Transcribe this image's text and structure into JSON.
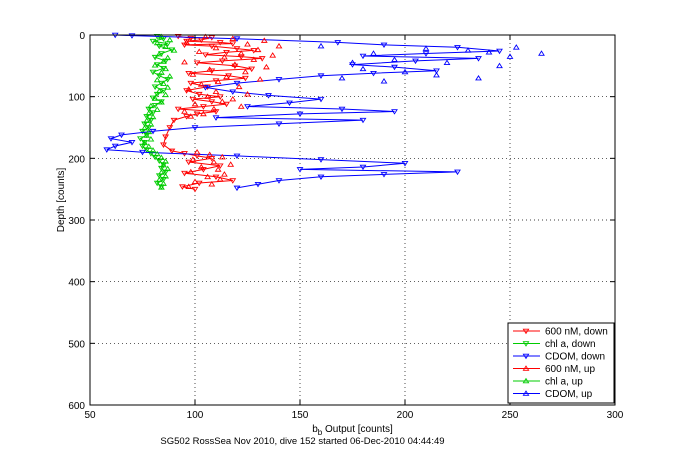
{
  "chart_data": {
    "type": "scatter",
    "title": "",
    "caption": "SG502 RossSea Nov 2010, dive 152 started 06-Dec-2010 04:44:49",
    "xlabel": "b",
    "xlabel_sub": "b",
    "xlabel_rest": " Output [counts]",
    "ylabel": "Depth [counts]",
    "xlim": [
      50,
      300
    ],
    "ylim": [
      0,
      600
    ],
    "y_reversed": true,
    "grid": true,
    "grid_style": "dotted",
    "legend_position": "bottom-right",
    "x_ticks": [
      "50",
      "100",
      "150",
      "200",
      "250",
      "300"
    ],
    "y_ticks": [
      "0",
      "100",
      "200",
      "300",
      "400",
      "500",
      "600"
    ],
    "series": [
      {
        "name": "600 nM, down",
        "color": "#ff0000",
        "marker": "triangle-down",
        "connected": true,
        "points": [
          [
            92,
            2
          ],
          [
            98,
            5
          ],
          [
            108,
            4
          ],
          [
            103,
            8
          ],
          [
            96,
            10
          ],
          [
            112,
            12
          ],
          [
            118,
            14
          ],
          [
            95,
            16
          ],
          [
            108,
            18
          ],
          [
            120,
            22
          ],
          [
            128,
            25
          ],
          [
            115,
            28
          ],
          [
            105,
            32
          ],
          [
            122,
            35
          ],
          [
            132,
            38
          ],
          [
            113,
            42
          ],
          [
            101,
            45
          ],
          [
            119,
            50
          ],
          [
            127,
            55
          ],
          [
            108,
            58
          ],
          [
            97,
            62
          ],
          [
            116,
            66
          ],
          [
            124,
            70
          ],
          [
            110,
            74
          ],
          [
            98,
            78
          ],
          [
            106,
            84
          ],
          [
            96,
            90
          ],
          [
            102,
            96
          ],
          [
            112,
            100
          ],
          [
            99,
            104
          ],
          [
            108,
            108
          ],
          [
            115,
            112
          ],
          [
            104,
            116
          ],
          [
            92,
            120
          ],
          [
            110,
            124
          ],
          [
            101,
            128
          ],
          [
            96,
            132
          ],
          [
            90,
            138
          ],
          [
            88,
            150
          ],
          [
            86,
            165
          ],
          [
            85,
            178
          ],
          [
            89,
            188
          ],
          [
            95,
            192
          ],
          [
            101,
            196
          ],
          [
            108,
            200
          ],
          [
            97,
            206
          ],
          [
            112,
            212
          ],
          [
            104,
            218
          ],
          [
            95,
            224
          ],
          [
            110,
            230
          ],
          [
            118,
            236
          ],
          [
            102,
            240
          ],
          [
            94,
            246
          ],
          [
            100,
            250
          ]
        ]
      },
      {
        "name": "chl a, down",
        "color": "#00cc00",
        "marker": "triangle-down",
        "connected": true,
        "points": [
          [
            82,
            2
          ],
          [
            85,
            6
          ],
          [
            80,
            10
          ],
          [
            87,
            14
          ],
          [
            83,
            18
          ],
          [
            89,
            24
          ],
          [
            84,
            30
          ],
          [
            81,
            36
          ],
          [
            86,
            42
          ],
          [
            82,
            48
          ],
          [
            85,
            54
          ],
          [
            80,
            60
          ],
          [
            83,
            66
          ],
          [
            87,
            72
          ],
          [
            84,
            78
          ],
          [
            81,
            84
          ],
          [
            85,
            90
          ],
          [
            82,
            96
          ],
          [
            80,
            102
          ],
          [
            84,
            108
          ],
          [
            81,
            114
          ],
          [
            78,
            120
          ],
          [
            80,
            126
          ],
          [
            77,
            132
          ],
          [
            79,
            138
          ],
          [
            76,
            144
          ],
          [
            78,
            150
          ],
          [
            75,
            156
          ],
          [
            77,
            162
          ],
          [
            74,
            168
          ],
          [
            76,
            174
          ],
          [
            75,
            180
          ],
          [
            77,
            186
          ],
          [
            79,
            192
          ],
          [
            81,
            198
          ],
          [
            83,
            204
          ],
          [
            85,
            210
          ],
          [
            84,
            216
          ],
          [
            86,
            222
          ],
          [
            83,
            228
          ],
          [
            85,
            234
          ],
          [
            82,
            240
          ],
          [
            84,
            246
          ]
        ]
      },
      {
        "name": "CDOM, down",
        "color": "#0000ff",
        "marker": "triangle-down",
        "connected": true,
        "points": [
          [
            62,
            0
          ],
          [
            70,
            1
          ],
          [
            120,
            6
          ],
          [
            168,
            12
          ],
          [
            190,
            16
          ],
          [
            225,
            20
          ],
          [
            245,
            26
          ],
          [
            210,
            30
          ],
          [
            180,
            34
          ],
          [
            235,
            38
          ],
          [
            205,
            42
          ],
          [
            175,
            48
          ],
          [
            195,
            52
          ],
          [
            215,
            58
          ],
          [
            185,
            62
          ],
          [
            160,
            66
          ],
          [
            140,
            72
          ],
          [
            120,
            78
          ],
          [
            105,
            85
          ],
          [
            118,
            92
          ],
          [
            135,
            98
          ],
          [
            160,
            104
          ],
          [
            145,
            110
          ],
          [
            125,
            116
          ],
          [
            170,
            120
          ],
          [
            195,
            124
          ],
          [
            150,
            128
          ],
          [
            110,
            134
          ],
          [
            180,
            138
          ],
          [
            140,
            144
          ],
          [
            100,
            150
          ],
          [
            80,
            156
          ],
          [
            65,
            162
          ],
          [
            60,
            168
          ],
          [
            70,
            174
          ],
          [
            62,
            180
          ],
          [
            58,
            186
          ],
          [
            75,
            190
          ],
          [
            120,
            196
          ],
          [
            160,
            202
          ],
          [
            200,
            208
          ],
          [
            180,
            214
          ],
          [
            150,
            218
          ],
          [
            225,
            222
          ],
          [
            190,
            226
          ],
          [
            160,
            230
          ],
          [
            140,
            236
          ],
          [
            130,
            242
          ],
          [
            120,
            248
          ]
        ]
      },
      {
        "name": "600 nM, up",
        "color": "#ff0000",
        "marker": "triangle-up",
        "connected": false,
        "points": [
          [
            105,
            3
          ],
          [
            118,
            6
          ],
          [
            133,
            9
          ],
          [
            96,
            12
          ],
          [
            125,
            15
          ],
          [
            140,
            18
          ],
          [
            110,
            21
          ],
          [
            130,
            24
          ],
          [
            102,
            27
          ],
          [
            122,
            30
          ],
          [
            137,
            33
          ],
          [
            114,
            36
          ],
          [
            128,
            40
          ],
          [
            95,
            44
          ],
          [
            119,
            48
          ],
          [
            134,
            52
          ],
          [
            107,
            56
          ],
          [
            124,
            60
          ],
          [
            99,
            64
          ],
          [
            115,
            68
          ],
          [
            131,
            72
          ],
          [
            111,
            76
          ],
          [
            103,
            80
          ],
          [
            121,
            84
          ],
          [
            97,
            88
          ],
          [
            110,
            92
          ],
          [
            125,
            96
          ],
          [
            106,
            100
          ],
          [
            118,
            104
          ],
          [
            113,
            108
          ],
          [
            100,
            112
          ],
          [
            122,
            116
          ],
          [
            109,
            120
          ],
          [
            95,
            124
          ],
          [
            104,
            128
          ],
          [
            98,
            132
          ],
          [
            101,
            190
          ],
          [
            107,
            194
          ],
          [
            113,
            198
          ],
          [
            99,
            202
          ],
          [
            109,
            206
          ],
          [
            117,
            210
          ],
          [
            103,
            214
          ],
          [
            111,
            218
          ],
          [
            98,
            222
          ],
          [
            114,
            226
          ],
          [
            106,
            230
          ],
          [
            112,
            234
          ],
          [
            100,
            238
          ],
          [
            108,
            242
          ],
          [
            97,
            246
          ]
        ]
      },
      {
        "name": "chl a, up",
        "color": "#00cc00",
        "marker": "triangle-up",
        "connected": false,
        "points": [
          [
            84,
            3
          ],
          [
            88,
            8
          ],
          [
            82,
            13
          ],
          [
            86,
            19
          ],
          [
            90,
            25
          ],
          [
            83,
            31
          ],
          [
            87,
            37
          ],
          [
            85,
            43
          ],
          [
            81,
            49
          ],
          [
            86,
            55
          ],
          [
            84,
            61
          ],
          [
            88,
            67
          ],
          [
            82,
            73
          ],
          [
            85,
            79
          ],
          [
            87,
            85
          ],
          [
            83,
            91
          ],
          [
            86,
            97
          ],
          [
            81,
            103
          ],
          [
            84,
            109
          ],
          [
            79,
            115
          ],
          [
            82,
            121
          ],
          [
            78,
            127
          ],
          [
            80,
            133
          ],
          [
            77,
            139
          ],
          [
            79,
            145
          ],
          [
            76,
            151
          ],
          [
            78,
            157
          ],
          [
            77,
            163
          ],
          [
            79,
            169
          ],
          [
            76,
            175
          ],
          [
            78,
            181
          ],
          [
            80,
            187
          ],
          [
            82,
            193
          ],
          [
            84,
            199
          ],
          [
            86,
            205
          ],
          [
            85,
            211
          ],
          [
            87,
            217
          ],
          [
            84,
            223
          ],
          [
            86,
            229
          ],
          [
            83,
            235
          ],
          [
            85,
            241
          ],
          [
            84,
            247
          ]
        ]
      },
      {
        "name": "CDOM, up",
        "color": "#0000ff",
        "marker": "triangle-up",
        "connected": false,
        "points": [
          [
            253,
            20
          ],
          [
            265,
            30
          ],
          [
            240,
            28
          ],
          [
            230,
            25
          ],
          [
            210,
            22
          ],
          [
            195,
            40
          ],
          [
            220,
            45
          ],
          [
            180,
            55
          ],
          [
            200,
            60
          ],
          [
            170,
            70
          ],
          [
            245,
            50
          ],
          [
            250,
            35
          ],
          [
            185,
            30
          ],
          [
            160,
            18
          ],
          [
            215,
            65
          ],
          [
            235,
            70
          ],
          [
            190,
            75
          ],
          [
            175,
            45
          ]
        ]
      }
    ]
  }
}
